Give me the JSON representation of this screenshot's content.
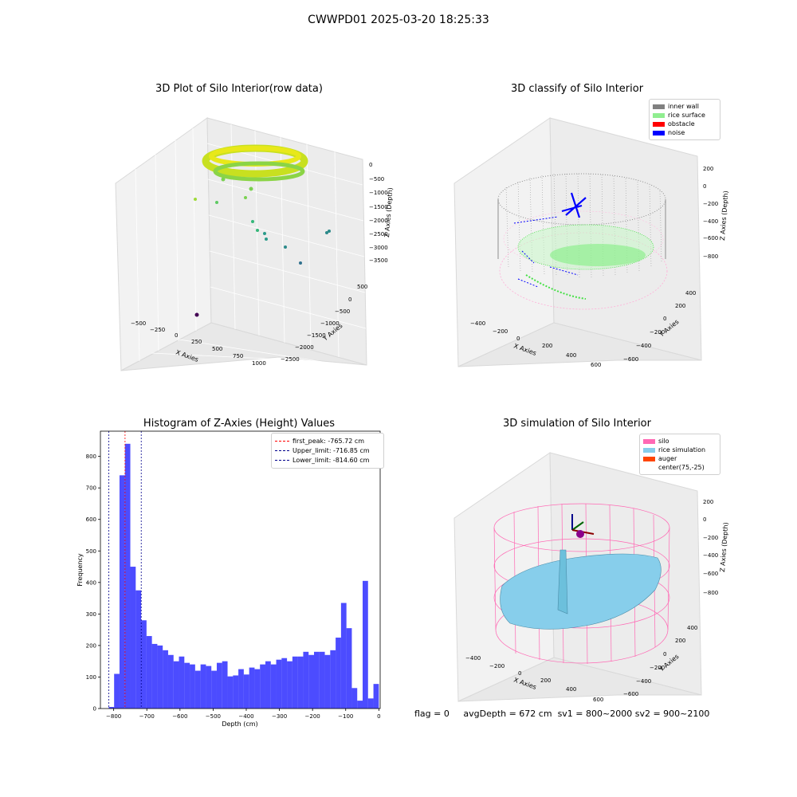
{
  "figure": {
    "suptitle": "CWWPD01 2025-03-20 18:25:33",
    "status": {
      "flag": "flag = 0",
      "avg_depth": "avgDepth = 672 cm",
      "sv1": "sv1 = 800~2000",
      "sv2": "sv2 = 900~2100"
    }
  },
  "panels": {
    "raw": {
      "title": "3D Plot of Silo Interior(row data)",
      "xlabel": "X Axies",
      "ylabel": "Y Axies",
      "zlabel": "Z Axies (Depth)",
      "xticks": [
        "−500",
        "−250",
        "0",
        "250",
        "500",
        "750",
        "1000"
      ],
      "yticks": [
        "500",
        "0",
        "−500",
        "−1000",
        "−1500",
        "−2000",
        "−2500"
      ],
      "zticks": [
        "0",
        "−500",
        "−1000",
        "−1500",
        "−2000",
        "−2500",
        "−3000",
        "−3500"
      ]
    },
    "classify": {
      "title": "3D classify of Silo Interior",
      "xlabel": "X Axies",
      "ylabel": "Y Axies",
      "zlabel": "Z Axies (Depth)",
      "xticks": [
        "−400",
        "−200",
        "0",
        "200",
        "400",
        "600"
      ],
      "yticks": [
        "400",
        "200",
        "0",
        "−200",
        "−400",
        "−600"
      ],
      "zticks": [
        "200",
        "0",
        "−200",
        "−400",
        "−600",
        "−800"
      ],
      "legend": [
        {
          "label": "inner wall",
          "color": "#808080"
        },
        {
          "label": "rice surface",
          "color": "#90ee90"
        },
        {
          "label": "obstacle",
          "color": "#ff0000"
        },
        {
          "label": "noise",
          "color": "#0000ff"
        }
      ]
    },
    "simulation": {
      "title": "3D simulation of Silo Interior",
      "xlabel": "X Axies",
      "ylabel": "Y Axies",
      "zlabel": "Z Axies (Depth)",
      "xticks": [
        "−400",
        "−200",
        "0",
        "200",
        "400",
        "600"
      ],
      "yticks": [
        "400",
        "200",
        "0",
        "−200",
        "−400",
        "−600"
      ],
      "zticks": [
        "200",
        "0",
        "−200",
        "−400",
        "−600",
        "−800"
      ],
      "legend": [
        {
          "label": "silo",
          "color": "#ff69b4"
        },
        {
          "label": "rice simulation",
          "color": "#87ceeb"
        },
        {
          "label": "auger",
          "color": "#ff4500"
        },
        {
          "label": "center(75,-25)",
          "color": ""
        }
      ]
    }
  },
  "chart_data": [
    {
      "type": "bar",
      "title": "Histogram of Z-Axies (Height) Values",
      "xlabel": "Depth (cm)",
      "ylabel": "Frequency",
      "xlim": [
        -840,
        4
      ],
      "ylim": [
        0,
        880
      ],
      "xticks": [
        -800,
        -700,
        -600,
        -500,
        -400,
        -300,
        -200,
        -100,
        0
      ],
      "yticks": [
        0,
        100,
        200,
        300,
        400,
        500,
        600,
        700,
        800
      ],
      "bar_color": "#0000ff",
      "bin_width": 16.3,
      "bin_start": -815,
      "values": [
        5,
        110,
        740,
        840,
        450,
        375,
        280,
        230,
        205,
        200,
        185,
        170,
        150,
        165,
        145,
        140,
        120,
        140,
        135,
        120,
        145,
        150,
        102,
        105,
        125,
        108,
        130,
        125,
        140,
        150,
        140,
        155,
        160,
        150,
        165,
        165,
        180,
        170,
        180,
        180,
        170,
        185,
        225,
        335,
        255,
        65,
        25,
        405,
        32,
        78
      ],
      "vlines": [
        {
          "name": "first_peak: -765.72 cm",
          "x": -765.72,
          "color": "#ff0000"
        },
        {
          "name": "Upper_limit: -716.85 cm",
          "x": -716.85,
          "color": "#00008b"
        },
        {
          "name": "Lower_limit: -814.60 cm",
          "x": -814.6,
          "color": "#00008b"
        }
      ],
      "legend_position": "top-right",
      "grid": false
    }
  ]
}
